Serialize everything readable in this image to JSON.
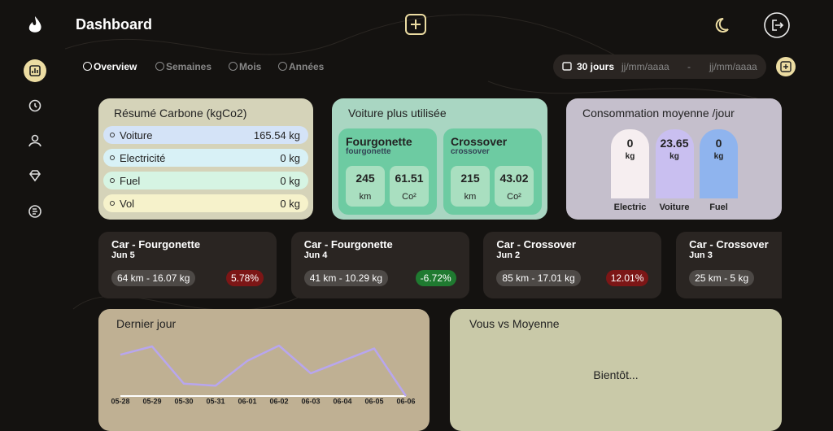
{
  "header": {
    "title": "Dashboard"
  },
  "tabs": [
    "Overview",
    "Semaines",
    "Mois",
    "Années"
  ],
  "date_filter": {
    "range": "30 jours",
    "start": "jj/mm/aaaa",
    "separator": "-",
    "end": "jj/mm/aaaa"
  },
  "carbon_summary": {
    "title": "Résumé Carbone (kgCo2)",
    "rows": [
      {
        "label": "Voiture",
        "value": "165.54 kg",
        "color": "#d4e3f7"
      },
      {
        "label": "Electricité",
        "value": "0 kg",
        "color": "#d8f1f6"
      },
      {
        "label": "Fuel",
        "value": "0 kg",
        "color": "#d6f4e3"
      },
      {
        "label": "Vol",
        "value": "0 kg",
        "color": "#f6f2cb"
      }
    ]
  },
  "most_used": {
    "title": "Voiture plus utilisée",
    "cars": [
      {
        "name": "Fourgonette",
        "subtitle": "fourgonette",
        "distance": "245",
        "distance_unit": "km",
        "emission": "61.51",
        "emission_unit": "Co²"
      },
      {
        "name": "Crossover",
        "subtitle": "crossover",
        "distance": "215",
        "distance_unit": "km",
        "emission": "43.02",
        "emission_unit": "Co²"
      }
    ]
  },
  "average": {
    "title": "Consommation moyenne /jour",
    "bars": [
      {
        "value": "0",
        "unit": "kg",
        "label": "Electric",
        "color": "#f6eef0"
      },
      {
        "value": "23.65",
        "unit": "kg",
        "label": "Voiture",
        "color": "#c9bff0"
      },
      {
        "value": "0",
        "unit": "kg",
        "label": "Fuel",
        "color": "#8fb4ee"
      }
    ]
  },
  "trips": [
    {
      "title": "Car - Fourgonette",
      "date": "Jun 5",
      "detail": "64 km - 16.07 kg",
      "change": "5.78%"
    },
    {
      "title": "Car - Fourgonette",
      "date": "Jun 4",
      "detail": "41 km - 10.29 kg",
      "change": "-6.72%"
    },
    {
      "title": "Car - Crossover",
      "date": "Jun 2",
      "detail": "85 km - 17.01 kg",
      "change": "12.01%"
    },
    {
      "title": "Car - Crossover",
      "date": "Jun 3",
      "detail": "25 km - 5 kg"
    }
  ],
  "last_day": {
    "title": "Dernier jour",
    "chart_data": {
      "type": "line",
      "x": [
        "05-28",
        "05-29",
        "05-30",
        "05-31",
        "06-01",
        "06-02",
        "06-03",
        "06-04",
        "06-05",
        "06-06"
      ],
      "values": [
        10,
        12,
        3,
        2.5,
        8.5,
        12.2,
        5.5,
        8.5,
        11.5,
        0
      ],
      "color": "#b8a6ee"
    }
  },
  "comparison": {
    "title": "Vous vs Moyenne",
    "status": "Bientôt..."
  }
}
